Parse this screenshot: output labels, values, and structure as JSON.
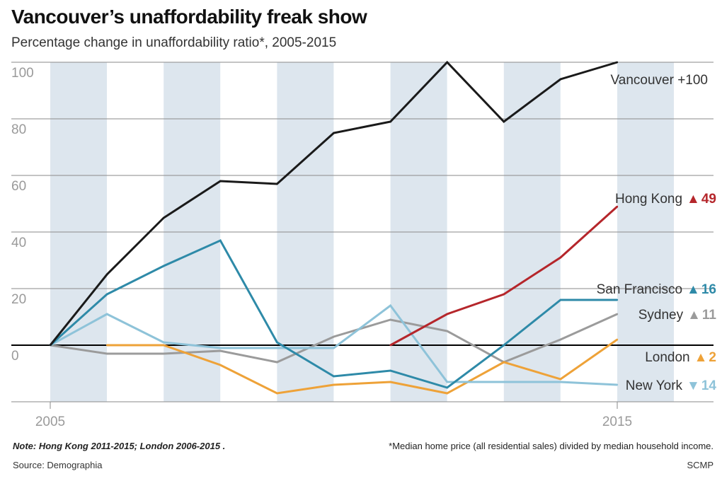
{
  "title": "Vancouver’s unaffordability freak show",
  "subtitle": "Percentage change in unaffordability ratio*, 2005-2015",
  "note": "Note: Hong Kong 2011-2015; London 2006-2015 .",
  "footnote": "*Median home price (all residential sales) divided by median household income.",
  "source": "Source: Demographia",
  "credit": "SCMP",
  "colors": {
    "band": "#dde6ee",
    "grid": "#8a8a8a",
    "tick": "#9a9a9a",
    "vancouver": "#1a1a1a",
    "hongkong": "#b5262b",
    "sanfrancisco": "#2e8aa8",
    "sydney": "#9b9b9b",
    "london": "#eea238",
    "newyork": "#8ec3d9"
  },
  "chart_data": {
    "type": "line",
    "x": [
      2005,
      2006,
      2007,
      2008,
      2009,
      2010,
      2011,
      2012,
      2013,
      2014,
      2015
    ],
    "xlim": [
      2005,
      2016.7
    ],
    "ylim": [
      -20,
      100
    ],
    "yticks": [
      100,
      80,
      60,
      40,
      20,
      0
    ],
    "xtick_labels": [
      {
        "x": 2005,
        "label": "2005"
      },
      {
        "x": 2015,
        "label": "2015"
      }
    ],
    "shaded_years": [
      2005,
      2007,
      2009,
      2011,
      2013,
      2015
    ],
    "series": [
      {
        "name": "Vancouver",
        "key": "vancouver",
        "values": [
          0,
          25,
          45,
          58,
          57,
          75,
          79,
          100,
          79,
          94,
          100
        ],
        "label": "Vancouver +100",
        "marker": "",
        "change": "",
        "label_y": 94
      },
      {
        "name": "Hong Kong",
        "key": "hongkong",
        "values": [
          null,
          null,
          null,
          null,
          null,
          null,
          0,
          11,
          18,
          31,
          49
        ],
        "label": "Hong Kong",
        "marker": "▲",
        "change": "49",
        "label_y": 52
      },
      {
        "name": "San Francisco",
        "key": "sanfrancisco",
        "values": [
          0,
          18,
          28,
          37,
          1,
          -11,
          -9,
          -15,
          0,
          16,
          16
        ],
        "label": "San Francisco",
        "marker": "▲",
        "change": "16",
        "label_y": 20
      },
      {
        "name": "Sydney",
        "key": "sydney",
        "values": [
          0,
          -3,
          -3,
          -2,
          -6,
          3,
          9,
          5,
          -6,
          2,
          11
        ],
        "label": "Sydney",
        "marker": "▲",
        "change": "11",
        "label_y": 11
      },
      {
        "name": "London",
        "key": "london",
        "values": [
          null,
          0,
          0,
          -7,
          -17,
          -14,
          -13,
          -17,
          -6,
          -12,
          2
        ],
        "label": "London",
        "marker": "▲",
        "change": "2",
        "label_y": -4
      },
      {
        "name": "New York",
        "key": "newyork",
        "values": [
          0,
          11,
          1,
          -1,
          -1,
          -1,
          14,
          -13,
          -13,
          -13,
          -14
        ],
        "label": "New York",
        "marker": "▼",
        "change": "14",
        "label_y": -14
      }
    ]
  }
}
